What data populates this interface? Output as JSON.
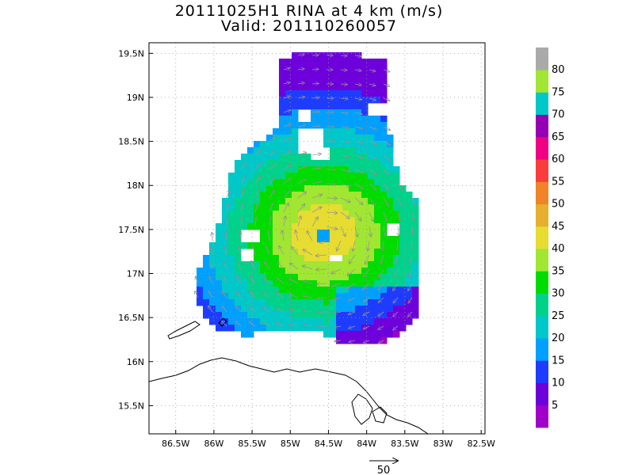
{
  "title": "20111025H1 RINA at 4 km (m/s)",
  "subtitle": "Valid: 201110260057",
  "map": {
    "lon_range": [
      -86.85,
      -82.45
    ],
    "lat_range": [
      15.18,
      19.62
    ],
    "lat_ticks": [
      "19.5N",
      "19N",
      "18.5N",
      "18N",
      "17.5N",
      "17N",
      "16.5N",
      "16N",
      "15.5N"
    ],
    "lat_tick_values": [
      19.5,
      19.0,
      18.5,
      18.0,
      17.5,
      17.0,
      16.5,
      16.0,
      15.5
    ],
    "lon_ticks": [
      "86.5W",
      "86W",
      "85.5W",
      "85W",
      "84.5W",
      "84W",
      "83.5W",
      "83W",
      "82.5W"
    ],
    "lon_tick_values": [
      -86.5,
      -86.0,
      -85.5,
      -85.0,
      -84.5,
      -84.0,
      -83.5,
      -83.0,
      -82.5
    ],
    "grid": "dotted",
    "storm_center": [
      -84.55,
      17.45
    ]
  },
  "colorbar": {
    "labels": [
      "5",
      "10",
      "15",
      "20",
      "25",
      "30",
      "35",
      "40",
      "45",
      "50",
      "55",
      "60",
      "65",
      "70",
      "75",
      "80"
    ],
    "colors": [
      "#a000c8",
      "#6e00dc",
      "#1e3cff",
      "#00a0ff",
      "#00c8c8",
      "#00d28c",
      "#00dc00",
      "#a0e632",
      "#e6dc32",
      "#e6af2d",
      "#f08228",
      "#fa3c3c",
      "#f00082",
      "#9600b4",
      "#00c8c8",
      "#a0e632",
      "#aaaaaa"
    ]
  },
  "vector_key": {
    "label": "50"
  }
}
